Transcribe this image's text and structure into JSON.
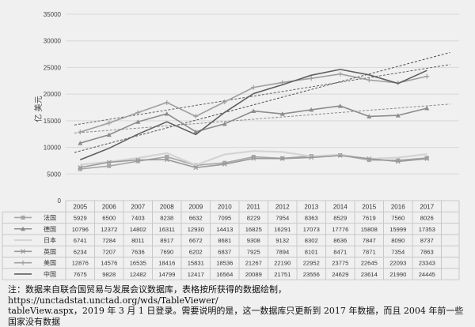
{
  "chart_data": {
    "type": "line",
    "ylabel": "亿 美元",
    "ylim": [
      0,
      35000
    ],
    "yticks": [
      0,
      5000,
      10000,
      15000,
      20000,
      25000,
      30000,
      35000
    ],
    "categories": [
      "2005",
      "2006",
      "2007",
      "2008",
      "2009",
      "2010",
      "2011",
      "2012",
      "2013",
      "2014",
      "2015",
      "2016",
      "2017"
    ],
    "trendlines": true,
    "grid": true,
    "legend": "data-table-below",
    "series": [
      {
        "name": "法国",
        "color": "#a6a6a6",
        "marker": "square",
        "values": [
          5929,
          6500,
          7403,
          8238,
          6632,
          7095,
          8229,
          7954,
          8363,
          8529,
          7619,
          7560,
          8026
        ]
      },
      {
        "name": "德国",
        "color": "#8c8c8c",
        "marker": "triangle",
        "values": [
          10796,
          12372,
          14802,
          16311,
          12930,
          14413,
          16825,
          16291,
          17073,
          17776,
          15808,
          15999,
          17353
        ]
      },
      {
        "name": "日本",
        "color": "#d4d4d4",
        "marker": "none",
        "values": [
          6741,
          7284,
          8011,
          8917,
          6672,
          8681,
          9308,
          9132,
          8302,
          8636,
          7847,
          8090,
          8737
        ]
      },
      {
        "name": "英国",
        "color": "#9a9a9a",
        "marker": "x",
        "values": [
          6234,
          7207,
          7636,
          7690,
          6202,
          6837,
          7925,
          7894,
          8101,
          8471,
          7871,
          7354,
          7863
        ]
      },
      {
        "name": "美国",
        "color": "#9f9f9f",
        "marker": "plus",
        "values": [
          12876,
          14576,
          16535,
          18416,
          15831,
          18536,
          21267,
          22190,
          22952,
          23775,
          22645,
          22093,
          23343
        ]
      },
      {
        "name": "中国",
        "color": "#5f5f5f",
        "marker": "none",
        "values": [
          7675,
          9828,
          12482,
          14799,
          12417,
          16564,
          20089,
          21751,
          23556,
          24629,
          23614,
          21990,
          24445
        ]
      }
    ]
  },
  "note": {
    "line1": "注：数据来自联合国贸易与发展会议数据库，表格按所获得的数据绘制，https://unctadstat.unctad.org/wds/TableViewer/",
    "line2": "tableView.aspx，2019 年 3 月 1 日登录。需要说明的是，这一数据库只更新到 2017 年数据，而且 2004 年前一些国家没有数据"
  }
}
